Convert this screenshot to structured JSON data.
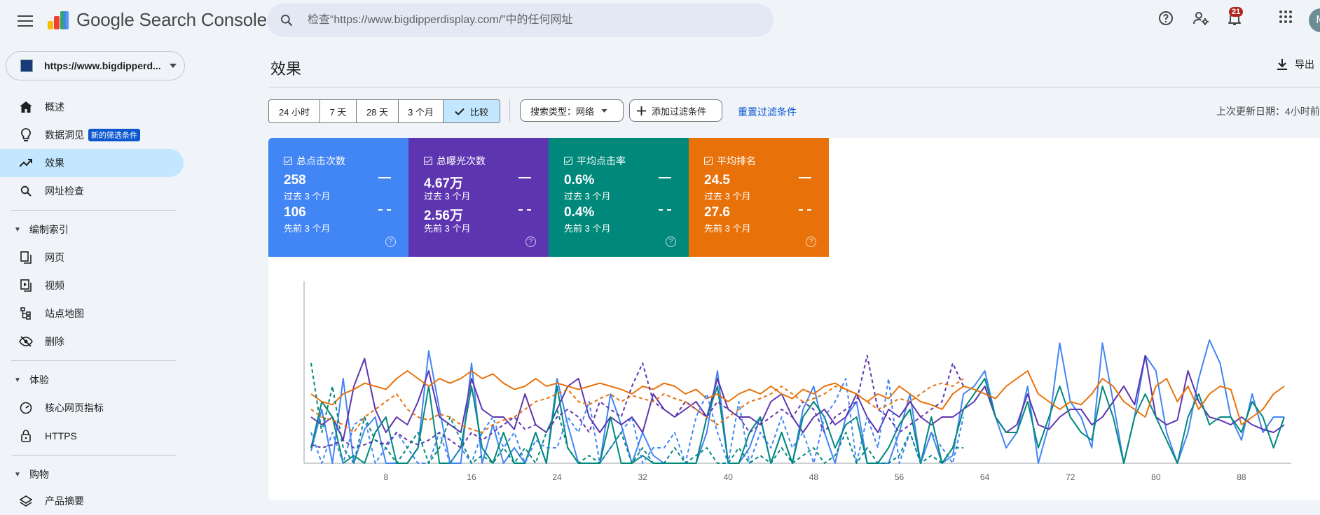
{
  "app": {
    "title": "Google Search Console",
    "search_placeholder": "检查“https://www.bigdipperdisplay.com/”中的任何网址",
    "notification_count": "21",
    "avatar_initial": "M",
    "icons": [
      "menu-icon",
      "search-icon",
      "help-icon",
      "admin-icon",
      "bell-icon",
      "apps-icon"
    ]
  },
  "property": {
    "label": "https://www.bigdipperd..."
  },
  "sidebar": {
    "new_badge": "新的筛选条件",
    "items": [
      {
        "label": "概述",
        "icon": "home-icon"
      },
      {
        "label": "数据洞见",
        "icon": "lightbulb-icon"
      },
      {
        "label": "效果",
        "icon": "trending-up-icon",
        "active": true
      },
      {
        "label": "网址检查",
        "icon": "search-icon"
      }
    ],
    "sections": [
      {
        "title": "编制索引",
        "items": [
          {
            "label": "网页",
            "icon": "pages-icon"
          },
          {
            "label": "视频",
            "icon": "video-icon"
          },
          {
            "label": "站点地图",
            "icon": "sitemap-icon"
          },
          {
            "label": "删除",
            "icon": "visibility-off-icon"
          }
        ]
      },
      {
        "title": "体验",
        "items": [
          {
            "label": "核心网页指标",
            "icon": "speed-icon"
          },
          {
            "label": "HTTPS",
            "icon": "lock-icon"
          }
        ]
      },
      {
        "title": "购物",
        "items": [
          {
            "label": "产品摘要",
            "icon": "layers-icon"
          }
        ]
      }
    ]
  },
  "main": {
    "title": "效果",
    "export_label": "导出",
    "date_chips": [
      "24 小时",
      "7 天",
      "28 天",
      "3 个月"
    ],
    "compare_label": "比较",
    "search_type_label": "搜索类型：网络",
    "add_filter_label": "添加过滤条件",
    "reset_filter_label": "重置过滤条件",
    "last_update": "上次更新日期：4小时前"
  },
  "metrics": [
    {
      "label": "总点击次数",
      "current": "258",
      "current_period": "过去 3 个月",
      "previous": "106",
      "previous_period": "先前 3 个月",
      "color": "#4285f4"
    },
    {
      "label": "总曝光次数",
      "current": "4.67万",
      "current_period": "过去 3 个月",
      "previous": "2.56万",
      "previous_period": "先前 3 个月",
      "color": "#5e35b1"
    },
    {
      "label": "平均点击率",
      "current": "0.6%",
      "current_period": "过去 3 个月",
      "previous": "0.4%",
      "previous_period": "先前 3 个月",
      "color": "#00897b"
    },
    {
      "label": "平均排名",
      "current": "24.5",
      "current_period": "过去 3 个月",
      "previous": "27.6",
      "previous_period": "先前 3 个月",
      "color": "#e8710a"
    }
  ],
  "chart_data": {
    "type": "line",
    "x_ticks": [
      "8",
      "16",
      "24",
      "32",
      "40",
      "48",
      "56",
      "64",
      "72",
      "80",
      "88"
    ],
    "xlim": [
      1,
      92
    ],
    "ylim": [
      0,
      1
    ],
    "grid": false,
    "series": [
      {
        "metric": "clicks",
        "period": "current",
        "color": "#4285f4",
        "style": "solid",
        "values": [
          0.08,
          0.35,
          0.0,
          0.55,
          0.0,
          0.22,
          0.3,
          0.0,
          0.0,
          0.0,
          0.1,
          0.73,
          0.35,
          0.0,
          0.0,
          0.65,
          0.0,
          0.25,
          0.0,
          0.1,
          0.0,
          0.2,
          0.0,
          0.55,
          0.25,
          0.0,
          0.0,
          0.0,
          0.45,
          0.25,
          0.0,
          0.2,
          0.05,
          0.0,
          0.0,
          0.0,
          0.0,
          0.2,
          0.6,
          0.0,
          0.0,
          0.1,
          0.3,
          0.0,
          0.2,
          0.0,
          0.35,
          0.5,
          0.2,
          0.0,
          0.3,
          0.4,
          0.0,
          0.0,
          0.0,
          0.2,
          0.45,
          0.0,
          0.2,
          0.0,
          0.05,
          0.45,
          0.5,
          0.6,
          0.3,
          0.1,
          0.2,
          0.5,
          0.0,
          0.25,
          0.78,
          0.4,
          0.3,
          0.1,
          0.78,
          0.4,
          0.0,
          0.3,
          0.7,
          0.6,
          0.2,
          0.0,
          0.2,
          0.55,
          0.8,
          0.65,
          0.3,
          0.15,
          0.45,
          0.2,
          0.3,
          0.3
        ]
      },
      {
        "metric": "impressions",
        "period": "current",
        "color": "#5e35b1",
        "style": "solid",
        "values": [
          0.3,
          0.25,
          0.3,
          0.15,
          0.5,
          0.68,
          0.35,
          0.2,
          0.3,
          0.25,
          0.4,
          0.6,
          0.3,
          0.25,
          0.2,
          0.55,
          0.35,
          0.3,
          0.3,
          0.22,
          0.45,
          0.25,
          0.2,
          0.35,
          0.5,
          0.55,
          0.3,
          0.2,
          0.3,
          0.25,
          0.3,
          0.2,
          0.45,
          0.35,
          0.3,
          0.35,
          0.4,
          0.3,
          0.55,
          0.35,
          0.3,
          0.3,
          0.25,
          0.4,
          0.45,
          0.3,
          0.2,
          0.3,
          0.35,
          0.25,
          0.3,
          0.45,
          0.3,
          0.2,
          0.35,
          0.3,
          0.4,
          0.3,
          0.25,
          0.3,
          0.3,
          0.35,
          0.4,
          0.5,
          0.3,
          0.2,
          0.25,
          0.45,
          0.25,
          0.22,
          0.3,
          0.35,
          0.35,
          0.25,
          0.3,
          0.4,
          0.5,
          0.38,
          0.7,
          0.3,
          0.25,
          0.28,
          0.6,
          0.4,
          0.3,
          0.28,
          0.25,
          0.3,
          0.25,
          0.22,
          0.2,
          0.25
        ]
      },
      {
        "metric": "ctr",
        "period": "current",
        "color": "#00897b",
        "style": "solid",
        "values": [
          0.1,
          0.4,
          0.3,
          0.0,
          0.05,
          0.0,
          0.2,
          0.3,
          0.0,
          0.0,
          0.1,
          0.5,
          0.0,
          0.0,
          0.1,
          0.5,
          0.1,
          0.0,
          0.2,
          0.0,
          0.0,
          0.2,
          0.0,
          0.5,
          0.1,
          0.0,
          0.0,
          0.0,
          0.3,
          0.0,
          0.0,
          0.05,
          0.0,
          0.0,
          0.0,
          0.0,
          0.0,
          0.3,
          0.5,
          0.0,
          0.0,
          0.2,
          0.3,
          0.0,
          0.2,
          0.0,
          0.3,
          0.4,
          0.3,
          0.1,
          0.25,
          0.3,
          0.0,
          0.0,
          0.1,
          0.25,
          0.35,
          0.0,
          0.3,
          0.0,
          0.1,
          0.35,
          0.45,
          0.55,
          0.3,
          0.2,
          0.2,
          0.4,
          0.1,
          0.3,
          0.5,
          0.3,
          0.2,
          0.15,
          0.5,
          0.3,
          0.0,
          0.3,
          0.45,
          0.3,
          0.15,
          0.0,
          0.3,
          0.45,
          0.25,
          0.3,
          0.3,
          0.2,
          0.4,
          0.3,
          0.1,
          0.3
        ]
      },
      {
        "metric": "position",
        "period": "current",
        "color": "#e8710a",
        "style": "solid",
        "values": [
          0.45,
          0.4,
          0.38,
          0.45,
          0.48,
          0.52,
          0.5,
          0.48,
          0.55,
          0.6,
          0.55,
          0.5,
          0.55,
          0.52,
          0.55,
          0.6,
          0.55,
          0.58,
          0.52,
          0.48,
          0.5,
          0.55,
          0.5,
          0.52,
          0.5,
          0.48,
          0.5,
          0.52,
          0.5,
          0.48,
          0.45,
          0.5,
          0.48,
          0.52,
          0.5,
          0.45,
          0.48,
          0.42,
          0.45,
          0.4,
          0.45,
          0.48,
          0.45,
          0.5,
          0.45,
          0.42,
          0.48,
          0.45,
          0.5,
          0.52,
          0.48,
          0.45,
          0.4,
          0.45,
          0.42,
          0.5,
          0.45,
          0.4,
          0.38,
          0.35,
          0.45,
          0.5,
          0.48,
          0.45,
          0.42,
          0.5,
          0.55,
          0.6,
          0.45,
          0.4,
          0.35,
          0.4,
          0.38,
          0.45,
          0.55,
          0.5,
          0.4,
          0.35,
          0.3,
          0.5,
          0.55,
          0.4,
          0.5,
          0.35,
          0.45,
          0.5,
          0.48,
          0.25,
          0.3,
          0.35,
          0.45,
          0.5
        ]
      },
      {
        "metric": "clicks",
        "period": "previous",
        "color": "#4285f4",
        "style": "dashed",
        "values": [
          0.2,
          0.0,
          0.2,
          0.0,
          0.25,
          0.3,
          0.0,
          0.1,
          0.2,
          0.1,
          0.0,
          0.0,
          0.2,
          0.0,
          0.1,
          0.0,
          0.2,
          0.3,
          0.1,
          0.2,
          0.0,
          0.15,
          0.1,
          0.1,
          0.3,
          0.2,
          0.4,
          0.0,
          0.1,
          0.2,
          0.3,
          0.0,
          0.1,
          0.1,
          0.2,
          0.0,
          0.3,
          0.45,
          0.2,
          0.0,
          0.4,
          0.0,
          0.2,
          0.1,
          0.3,
          0.1,
          0.2,
          0.0,
          0.3,
          0.4,
          0.55,
          0.0,
          0.3,
          0.1,
          0.55,
          0.0,
          0.2,
          0.0,
          0.2,
          0.1,
          0.0,
          0.3
        ]
      },
      {
        "metric": "impressions",
        "period": "previous",
        "color": "#5e35b1",
        "style": "dashed",
        "values": [
          0.12,
          0.1,
          0.12,
          0.15,
          0.1,
          0.12,
          0.15,
          0.12,
          0.2,
          0.15,
          0.12,
          0.15,
          0.2,
          0.15,
          0.1,
          0.2,
          0.15,
          0.2,
          0.25,
          0.3,
          0.22,
          0.25,
          0.2,
          0.3,
          0.35,
          0.3,
          0.2,
          0.4,
          0.35,
          0.3,
          0.5,
          0.65,
          0.4,
          0.35,
          0.3,
          0.4,
          0.35,
          0.3,
          0.4,
          0.35,
          0.3,
          0.2,
          0.25,
          0.3,
          0.35,
          0.3,
          0.4,
          0.35,
          0.2,
          0.3,
          0.35,
          0.4,
          0.7,
          0.35,
          0.3,
          0.2,
          0.25,
          0.3,
          0.35,
          0.4,
          0.65,
          0.5
        ]
      },
      {
        "metric": "ctr",
        "period": "previous",
        "color": "#00897b",
        "style": "dashed",
        "values": [
          0.65,
          0.2,
          0.5,
          0.1,
          0.0,
          0.3,
          0.15,
          0.1,
          0.0,
          0.1,
          0.2,
          0.0,
          0.1,
          0.3,
          0.15,
          0.0,
          0.05,
          0.0,
          0.1,
          0.0,
          0.1,
          0.0,
          0.2,
          0.35,
          0.1,
          0.0,
          0.05,
          0.0,
          0.1,
          0.2,
          0.0,
          0.1,
          0.0,
          0.0,
          0.1,
          0.0,
          0.05,
          0.1,
          0.0,
          0.0,
          0.1,
          0.0,
          0.05,
          0.0,
          0.1,
          0.0,
          0.05,
          0.1,
          0.0,
          0.05,
          0.2,
          0.0,
          0.1,
          0.0,
          0.0,
          0.05,
          0.2,
          0.0,
          0.05,
          0.0,
          0.1,
          0.1
        ]
      },
      {
        "metric": "position",
        "period": "previous",
        "color": "#e8710a",
        "style": "dashed",
        "values": [
          0.35,
          0.3,
          0.28,
          0.25,
          0.2,
          0.3,
          0.35,
          0.4,
          0.45,
          0.35,
          0.3,
          0.28,
          0.32,
          0.3,
          0.25,
          0.22,
          0.2,
          0.25,
          0.28,
          0.3,
          0.35,
          0.4,
          0.42,
          0.45,
          0.48,
          0.4,
          0.38,
          0.42,
          0.45,
          0.4,
          0.44,
          0.42,
          0.4,
          0.45,
          0.42,
          0.4,
          0.35,
          0.3,
          0.25,
          0.3,
          0.35,
          0.4,
          0.42,
          0.45,
          0.5,
          0.45,
          0.4,
          0.42,
          0.45,
          0.5,
          0.48,
          0.45,
          0.4,
          0.35,
          0.38,
          0.42,
          0.4,
          0.45,
          0.5,
          0.52,
          0.5,
          0.55
        ]
      }
    ]
  }
}
